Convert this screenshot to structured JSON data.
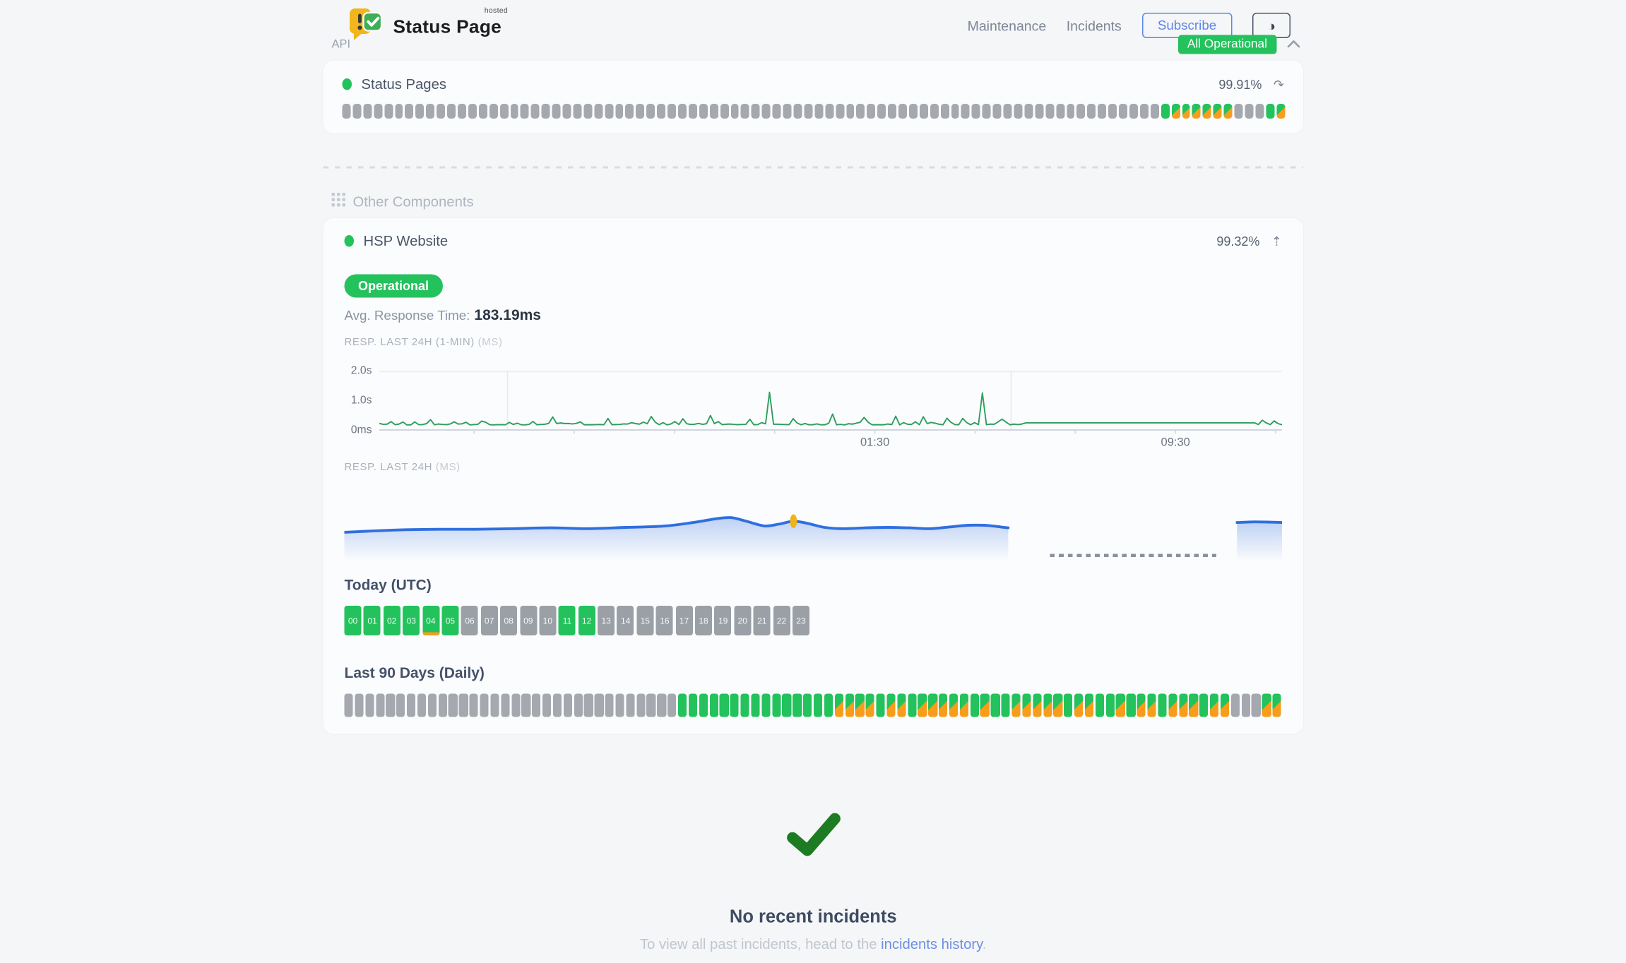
{
  "header": {
    "brand": {
      "name": "Status Page",
      "tag": "hosted"
    },
    "nav": [
      {
        "label": "Maintenance"
      },
      {
        "label": "Incidents"
      }
    ],
    "subscribe": "Subscribe",
    "overall_status": "All Operational"
  },
  "icons": {
    "history": "↷",
    "collapse": "⇡",
    "theme": "◑"
  },
  "api_section": {
    "title": "API",
    "component": {
      "name": "Status Pages",
      "uptime": "99.91%",
      "bars": "xxxxxxxxxxxxxxxxxxxxxxxxxxxxxxxxxxxxxxxxxxxxxxxxxxxxxxxxxxxxxxxxxxxxxxxxxxxxxxGmmmmmmxxxGm"
    }
  },
  "other_section": {
    "title": "Other Components",
    "component": {
      "name": "HSP Website",
      "uptime": "99.32%",
      "status": "Operational",
      "avg_label": "Avg. Response Time:",
      "avg_value": "183.19ms",
      "minute_chart": {
        "label": "RESP. LAST 24H (1-MIN)",
        "unit": "(MS)",
        "y_ticks": [
          "2.0s",
          "1.0s",
          "0ms"
        ],
        "x_ticks": [
          {
            "label": "01:30",
            "pos": 0.549
          },
          {
            "label": "09:30",
            "pos": 0.882
          }
        ],
        "grid_x": [
          0.142,
          0.7
        ],
        "axis_ticks": [
          0.105,
          0.216,
          0.327,
          0.438,
          0.549,
          0.66,
          0.771,
          0.882,
          0.993
        ],
        "ymax_ms": 2000,
        "baseline_ms": 172,
        "noise_ms": 115,
        "flat": {
          "from": 0.715,
          "to": 0.967,
          "ms": 238
        },
        "spikes": [
          [
            0.431,
            1270
          ],
          [
            0.668,
            1245
          ],
          [
            0.055,
            345
          ],
          [
            0.115,
            300
          ],
          [
            0.19,
            440
          ],
          [
            0.255,
            385
          ],
          [
            0.302,
            455
          ],
          [
            0.337,
            380
          ],
          [
            0.365,
            485
          ],
          [
            0.41,
            360
          ],
          [
            0.458,
            380
          ],
          [
            0.502,
            535
          ],
          [
            0.536,
            420
          ],
          [
            0.572,
            465
          ],
          [
            0.602,
            445
          ],
          [
            0.628,
            395
          ],
          [
            0.648,
            390
          ],
          [
            0.69,
            365
          ],
          [
            0.978,
            330
          ],
          [
            0.99,
            305
          ]
        ],
        "points": 230,
        "seed": 13
      },
      "day_chart": {
        "label": "RESP. LAST 24H",
        "unit": "(MS)",
        "segments": [
          [
            [
              0,
              0.62
            ],
            [
              0.03,
              0.605
            ],
            [
              0.065,
              0.59
            ],
            [
              0.1,
              0.585
            ],
            [
              0.14,
              0.585
            ],
            [
              0.18,
              0.578
            ],
            [
              0.22,
              0.568
            ],
            [
              0.26,
              0.578
            ],
            [
              0.3,
              0.563
            ],
            [
              0.34,
              0.548
            ],
            [
              0.372,
              0.505
            ],
            [
              0.398,
              0.458
            ],
            [
              0.413,
              0.448
            ],
            [
              0.428,
              0.487
            ],
            [
              0.448,
              0.545
            ],
            [
              0.463,
              0.525
            ],
            [
              0.479,
              0.49
            ],
            [
              0.494,
              0.515
            ],
            [
              0.512,
              0.562
            ],
            [
              0.532,
              0.578
            ],
            [
              0.556,
              0.568
            ],
            [
              0.58,
              0.562
            ],
            [
              0.603,
              0.568
            ],
            [
              0.625,
              0.578
            ],
            [
              0.645,
              0.558
            ],
            [
              0.665,
              0.538
            ],
            [
              0.683,
              0.538
            ],
            [
              0.7,
              0.558
            ],
            [
              0.708,
              0.568
            ]
          ],
          [
            [
              0.952,
              0.505
            ],
            [
              0.97,
              0.498
            ],
            [
              0.985,
              0.5
            ],
            [
              1,
              0.505
            ]
          ]
        ],
        "marker": [
          0.479,
          0.49
        ],
        "gap_dash": {
          "from": 0.752,
          "to": 0.93
        }
      },
      "today": {
        "title": "Today (UTC)",
        "labels": [
          "00",
          "01",
          "02",
          "03",
          "04",
          "05",
          "06",
          "07",
          "08",
          "09",
          "10",
          "11",
          "12",
          "13",
          "14",
          "15",
          "16",
          "17",
          "18",
          "19",
          "20",
          "21",
          "22",
          "23"
        ],
        "states": "GGGGGGxxxxxGGxxxxxxxxxxx",
        "marker_hour": 4
      },
      "last90": {
        "title": "Last 90 Days (Daily)",
        "bars": "xxxxxxxxxxxxxxxxxxxxxxxxxxxxxxxxGGGGGGGGGGGGGGGmmmmGmmGmmmmmGmGGmmmmmGmmGGmGmmGmmmGmmxxxmm"
      }
    }
  },
  "incidents": {
    "title": "No recent incidents",
    "note_prefix": "To view all past incidents, head to the ",
    "link": "incidents history",
    "note_suffix": "."
  },
  "colors": {
    "green": "#24c25c",
    "orange": "#f79d1b",
    "bar_gray": "#a5a9af",
    "line_green": "#2f9e5e",
    "line_blue": "#2f6fe0",
    "marker_yellow": "#f0b417",
    "check_green": "#1d7c23",
    "accent_blue": "#5c86e8"
  }
}
